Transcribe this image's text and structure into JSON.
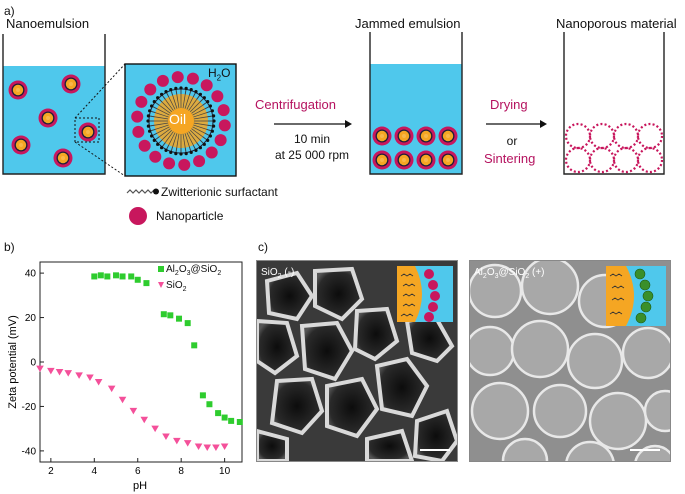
{
  "panel_a": {
    "label": "a)",
    "nanoemulsion_title": "Nanoemulsion",
    "water_label": "H",
    "water_sub": "2",
    "water_tail": "O",
    "oil_label": "Oil",
    "step1": {
      "name": "Centrifugation",
      "line1": "10 min",
      "line2": "at 25 000 rpm"
    },
    "jammed_title": "Jammed emulsion",
    "step2": {
      "name1": "Drying",
      "or": "or",
      "name2": "Sintering"
    },
    "porous_title": "Nanoporous material",
    "legend_surfactant": "Zwitterionic surfactant",
    "legend_nanoparticle": "Nanoparticle",
    "colors": {
      "water": "#4fc8ec",
      "oil": "#f5a623",
      "particle": "#c8175d",
      "label_accent": "#b5125f"
    }
  },
  "panel_b": {
    "label": "b)"
  },
  "panel_c": {
    "label": "c)",
    "left_label": "SiO",
    "left_sub": "2",
    "left_tail": " (-)",
    "right_label_a": "Al",
    "right_sub_a": "2",
    "right_label_b": "O",
    "right_sub_b": "3",
    "right_label_c": "@SiO",
    "right_sub_c": "2",
    "right_tail": " (+)"
  },
  "chart_data": {
    "type": "scatter",
    "xlabel": "pH",
    "ylabel": "Zeta potential (mV)",
    "xlim": [
      1.5,
      10.8
    ],
    "ylim": [
      -45,
      45
    ],
    "xticks": [
      2,
      4,
      6,
      8,
      10
    ],
    "yticks": [
      40,
      20,
      0,
      -20,
      -40
    ],
    "legend_position": "top-right",
    "series": [
      {
        "name": "Al2O3@SiO2",
        "marker": "square",
        "color": "#2ecc2e",
        "x": [
          4.0,
          4.3,
          4.6,
          5.0,
          5.3,
          5.7,
          6.0,
          6.4,
          7.2,
          7.5,
          7.9,
          8.3,
          8.6,
          9.0,
          9.3,
          9.7,
          10.0,
          10.3,
          10.7
        ],
        "y": [
          38.5,
          39,
          38.5,
          39,
          38.5,
          38.5,
          37,
          35.5,
          21.5,
          21,
          19.5,
          17.5,
          7.5,
          -15,
          -19,
          -23,
          -25,
          -26.5,
          -27
        ]
      },
      {
        "name": "SiO2",
        "marker": "triangle-down",
        "color": "#f4509a",
        "x": [
          1.5,
          2.0,
          2.4,
          2.8,
          3.3,
          3.8,
          4.2,
          4.8,
          5.3,
          5.8,
          6.3,
          6.8,
          7.3,
          7.8,
          8.3,
          8.8,
          9.2,
          9.6,
          10.0
        ],
        "y": [
          -3,
          -4,
          -4.5,
          -5,
          -6,
          -7,
          -9,
          -12,
          -17,
          -22,
          -26,
          -30,
          -33.5,
          -35.5,
          -36.5,
          -38,
          -38.5,
          -38.5,
          -38
        ]
      }
    ]
  }
}
